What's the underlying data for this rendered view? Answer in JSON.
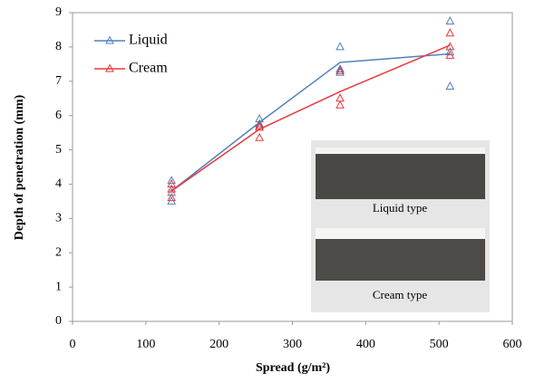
{
  "chart_data": {
    "type": "scatter",
    "xlabel": "Spread (g/m²)",
    "ylabel": "Depth of penetration  (mm)",
    "x": [
      135,
      255,
      365,
      515
    ],
    "xlim": [
      0,
      600
    ],
    "xticks": [
      0,
      100,
      200,
      300,
      400,
      500,
      600
    ],
    "ylim": [
      0,
      9
    ],
    "yticks": [
      0,
      1,
      2,
      3,
      4,
      5,
      6,
      7,
      8,
      9
    ],
    "legend": "upper left",
    "series": [
      {
        "name": "Liquid",
        "color": "#4f81bd",
        "values": [
          3.8,
          5.8,
          7.55,
          7.8
        ],
        "scatter_x": [
          135,
          135,
          135,
          255,
          255,
          255,
          365,
          365,
          365,
          515,
          515,
          515
        ],
        "scatter_y": [
          4.1,
          3.5,
          3.75,
          5.9,
          5.7,
          5.75,
          8.0,
          7.25,
          7.35,
          8.75,
          6.85,
          7.85
        ]
      },
      {
        "name": "Cream",
        "color": "#e8383d",
        "values": [
          3.8,
          5.6,
          6.7,
          8.05
        ],
        "scatter_x": [
          135,
          135,
          135,
          255,
          255,
          255,
          365,
          365,
          365,
          515,
          515,
          515
        ],
        "scatter_y": [
          4.0,
          3.85,
          3.6,
          5.35,
          5.7,
          5.65,
          7.3,
          6.5,
          6.3,
          8.4,
          8.0,
          7.75
        ]
      }
    ],
    "inset_labels": [
      "Liquid type",
      "Cream type"
    ]
  }
}
